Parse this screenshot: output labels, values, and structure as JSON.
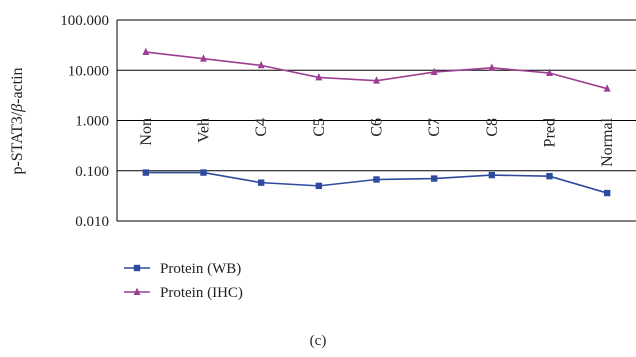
{
  "chart_data": {
    "type": "line",
    "scale": "log",
    "ylabel_prefix": "p-STAT3/",
    "ylabel_beta": "β",
    "ylabel_suffix": "-actin",
    "yticks": [
      "100.000",
      "10.000",
      "1.000",
      "0.100",
      "0.010"
    ],
    "ylim": [
      0.01,
      100
    ],
    "grid": true,
    "legend_position": "bottom-left",
    "categories": [
      "Non",
      "Veh",
      "C4",
      "C5",
      "C6",
      "C7",
      "C8",
      "Pred",
      "Normal"
    ],
    "series": [
      {
        "name": "Protein (WB)",
        "color": "#2e4b9e",
        "marker": "square",
        "values": [
          0.092,
          0.092,
          0.058,
          0.05,
          0.067,
          0.07,
          0.082,
          0.078,
          0.036
        ]
      },
      {
        "name": "Protein (IHC)",
        "color": "#9c3f92",
        "marker": "triangle",
        "values": [
          23,
          17,
          12.5,
          7.2,
          6.2,
          9.2,
          11.2,
          8.8,
          4.3
        ]
      }
    ]
  },
  "caption": "(c)"
}
